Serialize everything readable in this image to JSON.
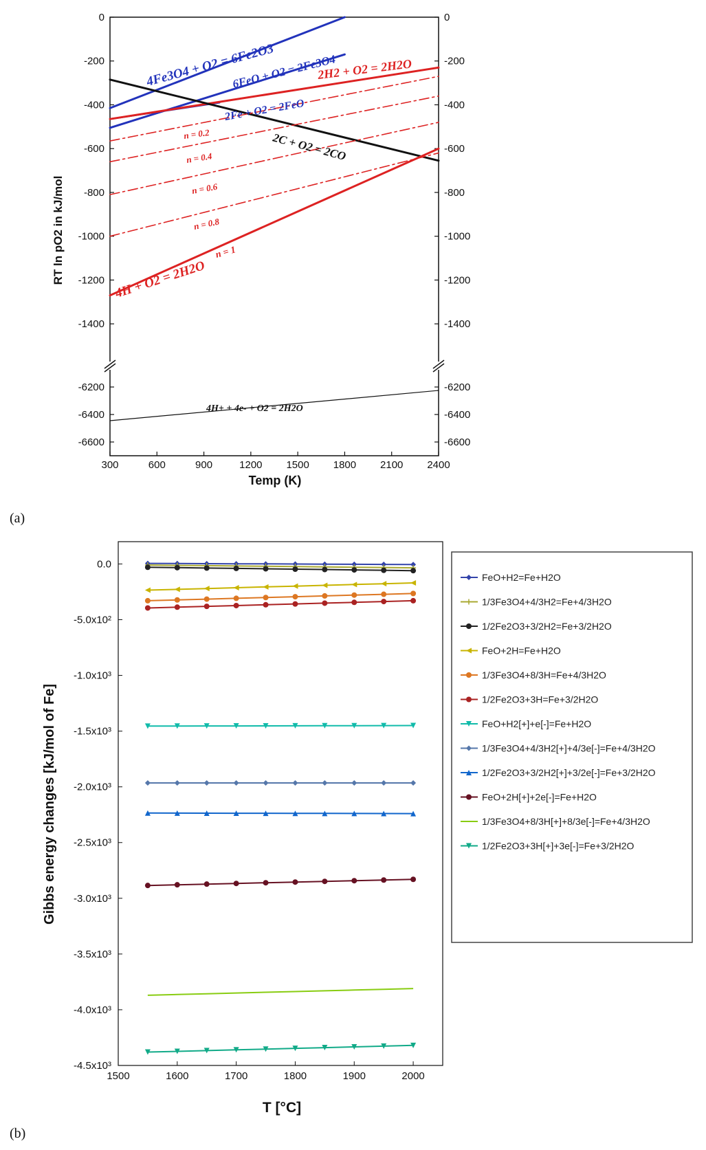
{
  "chart_data": [
    {
      "type": "line",
      "panel_label": "(a)",
      "xlabel": "Temp (K)",
      "ylabel": "RT ln pO2 in kJ/mol",
      "xlim": [
        300,
        2400
      ],
      "x_ticks": [
        "300",
        "600",
        "900",
        "1200",
        "1500",
        "1800",
        "2100",
        "2400"
      ],
      "ylim_upper": [
        -1500,
        0
      ],
      "ylim_lower": [
        -6700,
        -6100
      ],
      "y_ticks_upper": [
        "0",
        "-200",
        "-400",
        "-600",
        "-800",
        "-1000",
        "-1200",
        "-1400"
      ],
      "y_ticks_lower": [
        "-6200",
        "-6400",
        "-6600"
      ],
      "axis_break": true,
      "series": [
        {
          "name": "4Fe3O4 + O2 = 6Fe2O3",
          "color": "#2233bb",
          "style": "solid",
          "x": [
            300,
            1800
          ],
          "y": [
            -415,
            0
          ]
        },
        {
          "name": "6FeO + O2 = 2Fe3O4",
          "color": "#2233bb",
          "style": "solid",
          "x": [
            300,
            1800
          ],
          "y": [
            -505,
            -170
          ]
        },
        {
          "name": "2Fe + O2 = 2FeO",
          "color": "#2233bb",
          "style": "solid",
          "x": [
            300,
            1000
          ],
          "y": [
            -465,
            -390
          ]
        },
        {
          "name": "2H2 + O2 = 2H2O",
          "color": "#dd2222",
          "style": "solid",
          "x": [
            300,
            2400
          ],
          "y": [
            -465,
            -230
          ]
        },
        {
          "name": "2C + O2 = 2CO",
          "color": "#111111",
          "style": "solid",
          "x": [
            300,
            2400
          ],
          "y": [
            -285,
            -655
          ]
        },
        {
          "name": "n = 0.2",
          "color": "#dd2222",
          "style": "dashdot",
          "x": [
            300,
            2400
          ],
          "y": [
            -565,
            -270
          ]
        },
        {
          "name": "n = 0.4",
          "color": "#dd2222",
          "style": "dashdot",
          "x": [
            300,
            2400
          ],
          "y": [
            -660,
            -360
          ]
        },
        {
          "name": "n = 0.6",
          "color": "#dd2222",
          "style": "dashdot",
          "x": [
            300,
            2400
          ],
          "y": [
            -810,
            -480
          ]
        },
        {
          "name": "n = 0.8",
          "color": "#dd2222",
          "style": "dashdot",
          "x": [
            300,
            2400
          ],
          "y": [
            -1000,
            -620
          ]
        },
        {
          "name": "4H + O2 = 2H2O  n = 1",
          "color": "#dd2222",
          "style": "solid",
          "x": [
            300,
            2400
          ],
          "y": [
            -1270,
            -600
          ]
        },
        {
          "name": "4H+ + 4e- + O2 = 2H2O",
          "color": "#111111",
          "style": "thin",
          "x": [
            300,
            2400
          ],
          "y": [
            -6445,
            -6225
          ]
        }
      ],
      "labels": {
        "fe3o4_fe2o3": "4Fe3O4 + O2 = 6Fe2O3",
        "feo_fe3o4": "6FeO + O2 = 2Fe3O4",
        "fe_feo": "2Fe + O2 = 2FeO",
        "h2_h2o": "2H2 + O2 = 2H2O",
        "c_co": "2C + O2 = 2CO",
        "n02": "n = 0.2",
        "n04": "n = 0.4",
        "n06": "n = 0.6",
        "n08": "n = 0.8",
        "h_h2o": "4H + O2 = 2H2O",
        "n1": "n = 1",
        "hplus": "4H+ + 4e- + O2 = 2H2O"
      }
    },
    {
      "type": "line",
      "panel_label": "(b)",
      "xlabel": "T [°C]",
      "ylabel": "Gibbs energy changes [kJ/mol of Fe]",
      "xlim": [
        1500,
        2050
      ],
      "ylim": [
        -4500,
        200
      ],
      "x_ticks": [
        "1500",
        "1600",
        "1700",
        "1800",
        "1900",
        "2000"
      ],
      "y_ticks": [
        {
          "value": 0,
          "label": "0.0"
        },
        {
          "value": -500,
          "label": "-5.0x10²"
        },
        {
          "value": -1000,
          "label": "-1.0x10³"
        },
        {
          "value": -1500,
          "label": "-1.5x10³"
        },
        {
          "value": -2000,
          "label": "-2.0x10³"
        },
        {
          "value": -2500,
          "label": "-2.5x10³"
        },
        {
          "value": -3000,
          "label": "-3.0x10³"
        },
        {
          "value": -3500,
          "label": "-3.5x10³"
        },
        {
          "value": -4000,
          "label": "-4.0x10³"
        },
        {
          "value": -4500,
          "label": "-4.5x10³"
        }
      ],
      "x": [
        1550,
        1600,
        1650,
        1700,
        1750,
        1800,
        1850,
        1900,
        1950,
        2000
      ],
      "series": [
        {
          "name": "FeO+H2=Fe+H2O",
          "color": "#3344aa",
          "marker": "diamond",
          "start": 5,
          "end": -5
        },
        {
          "name": "1/3Fe3O4+4/3H2=Fe+4/3H2O",
          "color": "#a8a830",
          "marker": "plus",
          "start": -10,
          "end": -35
        },
        {
          "name": "1/2Fe2O3+3/2H2=Fe+3/2H2O",
          "color": "#222222",
          "marker": "circle",
          "start": -30,
          "end": -60
        },
        {
          "name": "FeO+2H=Fe+H2O",
          "color": "#c8b400",
          "marker": "triangle-left",
          "start": -235,
          "end": -170
        },
        {
          "name": "1/3Fe3O4+8/3H=Fe+4/3H2O",
          "color": "#dd7722",
          "marker": "circle",
          "start": -330,
          "end": -265
        },
        {
          "name": "1/2Fe2O3+3H=Fe+3/2H2O",
          "color": "#aa2222",
          "marker": "circle",
          "start": -395,
          "end": -330
        },
        {
          "name": "FeO+H2[+]+e[-]=Fe+H2O",
          "color": "#11bbaa",
          "marker": "triangle-down",
          "start": -1455,
          "end": -1450
        },
        {
          "name": "1/3Fe3O4+4/3H2[+]+4/3e[-]=Fe+4/3H2O",
          "color": "#5577aa",
          "marker": "diamond",
          "start": -1965,
          "end": -1965
        },
        {
          "name": "1/2Fe2O3+3/2H2[+]+3/2e[-]=Fe+3/2H2O",
          "color": "#1166cc",
          "marker": "triangle-up",
          "start": -2235,
          "end": -2240
        },
        {
          "name": "FeO+2H[+]+2e[-]=Fe+H2O",
          "color": "#661122",
          "marker": "circle",
          "start": -2885,
          "end": -2830
        },
        {
          "name": "1/3Fe3O4+8/3H[+]+8/3e[-]=Fe+4/3H2O",
          "color": "#88cc11",
          "marker": "none",
          "start": -3870,
          "end": -3810
        },
        {
          "name": "1/2Fe2O3+3H[+]+3e[-]=Fe+3/2H2O",
          "color": "#11aa88",
          "marker": "triangle-down",
          "start": -4380,
          "end": -4320
        }
      ]
    }
  ]
}
